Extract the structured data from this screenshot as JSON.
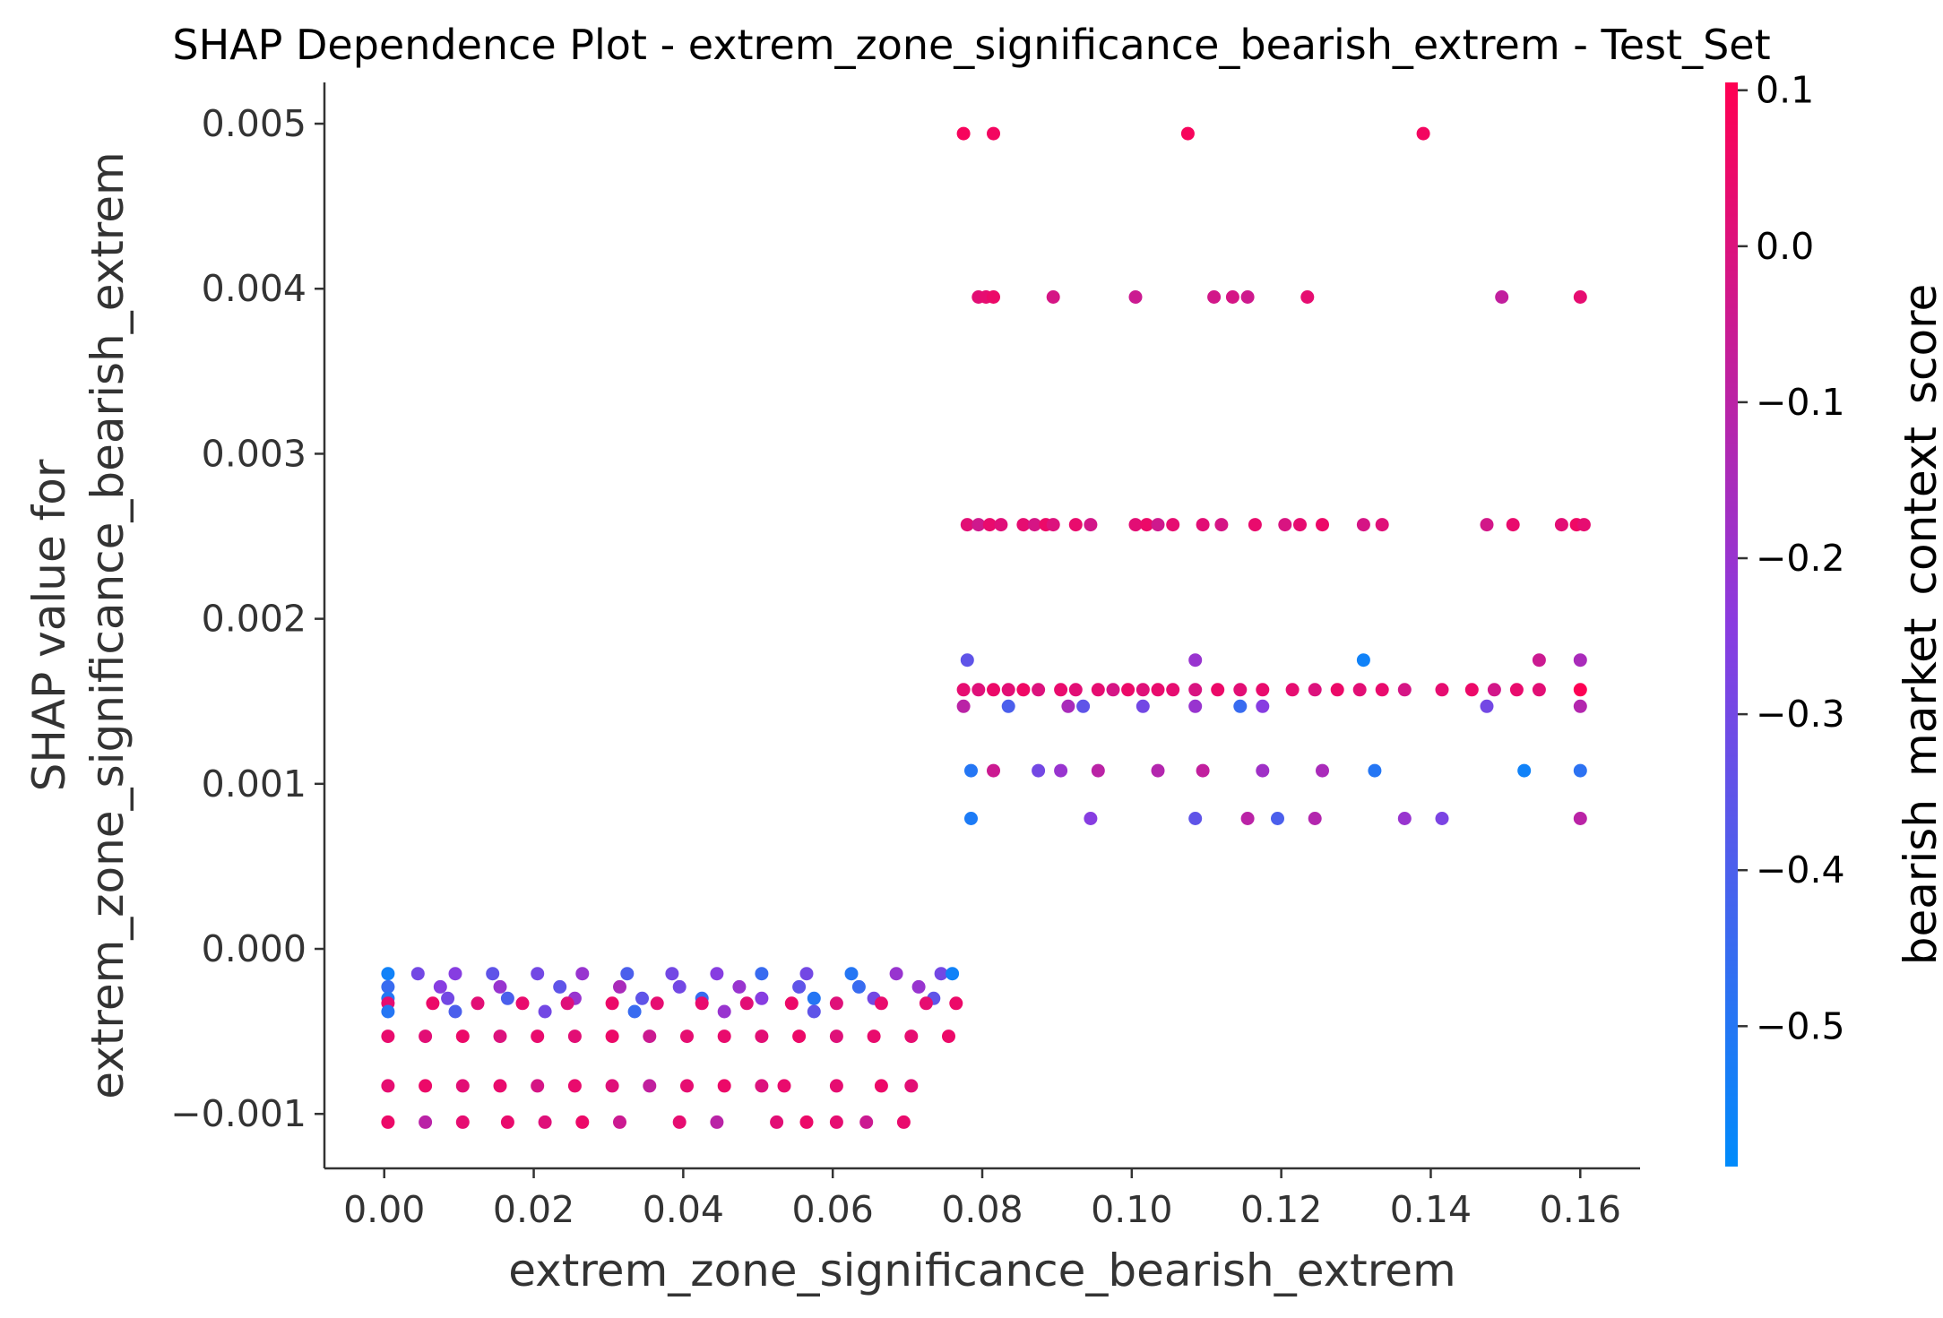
{
  "chart_data": {
    "type": "scatter",
    "title": "SHAP Dependence Plot - extrem_zone_significance_bearish_extrem - Test_Set",
    "xlabel": "extrem_zone_significance_bearish_extrem",
    "ylabel_line1": "SHAP value for",
    "ylabel_line2": "extrem_zone_significance_bearish_extrem",
    "xlim": [
      -0.008,
      0.168
    ],
    "ylim": [
      -0.00133,
      0.00525
    ],
    "xticks": [
      0.0,
      0.02,
      0.04,
      0.06,
      0.08,
      0.1,
      0.12,
      0.14,
      0.16
    ],
    "xtick_labels": [
      "0.00",
      "0.02",
      "0.04",
      "0.06",
      "0.08",
      "0.10",
      "0.12",
      "0.14",
      "0.16"
    ],
    "yticks": [
      -0.001,
      0.0,
      0.001,
      0.002,
      0.003,
      0.004,
      0.005
    ],
    "ytick_labels": [
      "−0.001",
      "0.000",
      "0.001",
      "0.002",
      "0.003",
      "0.004",
      "0.005"
    ],
    "grid": false,
    "colorbar": {
      "label": "bearish_market_context_score",
      "range": [
        -0.59,
        0.105
      ],
      "ticks": [
        0.1,
        0.0,
        -0.1,
        -0.2,
        -0.3,
        -0.4,
        -0.5
      ],
      "tick_labels": [
        "0.1",
        "0.0",
        "−0.1",
        "−0.2",
        "−0.3",
        "−0.4",
        "−0.5"
      ],
      "color_low": "#008bfb",
      "color_mid": "#8a3be0",
      "color_high": "#ff0052"
    },
    "series": [
      {
        "points": [
          [
            0.0775,
            0.00494,
            0.08
          ],
          [
            0.0815,
            0.00494,
            0.07
          ],
          [
            0.1075,
            0.00494,
            0.08
          ],
          [
            0.139,
            0.00494,
            0.07
          ],
          [
            0.0795,
            0.00395,
            0.02
          ],
          [
            0.0805,
            0.00395,
            0.03
          ],
          [
            0.0815,
            0.00395,
            0.05
          ],
          [
            0.0895,
            0.00395,
            -0.02
          ],
          [
            0.1005,
            0.00395,
            -0.05
          ],
          [
            0.111,
            0.00395,
            -0.03
          ],
          [
            0.1135,
            0.00395,
            -0.02
          ],
          [
            0.1155,
            0.00395,
            -0.04
          ],
          [
            0.1235,
            0.00395,
            0.03
          ],
          [
            0.1495,
            0.00395,
            -0.08
          ],
          [
            0.16,
            0.00395,
            0.03
          ],
          [
            0.078,
            0.00257,
            0.02
          ],
          [
            0.0795,
            0.00257,
            -0.04
          ],
          [
            0.081,
            0.00257,
            0.04
          ],
          [
            0.0825,
            0.00257,
            0.01
          ],
          [
            0.0855,
            0.00257,
            0.03
          ],
          [
            0.087,
            0.00257,
            -0.02
          ],
          [
            0.0885,
            0.00257,
            0.05
          ],
          [
            0.0895,
            0.00257,
            0.0
          ],
          [
            0.0925,
            0.00257,
            0.04
          ],
          [
            0.0945,
            0.00257,
            -0.03
          ],
          [
            0.1005,
            0.00257,
            0.02
          ],
          [
            0.102,
            0.00257,
            0.05
          ],
          [
            0.1035,
            0.00257,
            -0.04
          ],
          [
            0.1055,
            0.00257,
            0.03
          ],
          [
            0.1095,
            0.00257,
            0.02
          ],
          [
            0.112,
            0.00257,
            -0.02
          ],
          [
            0.1165,
            0.00257,
            0.04
          ],
          [
            0.1205,
            0.00257,
            -0.01
          ],
          [
            0.1225,
            0.00257,
            0.03
          ],
          [
            0.1255,
            0.00257,
            0.05
          ],
          [
            0.131,
            0.00257,
            -0.02
          ],
          [
            0.1335,
            0.00257,
            0.01
          ],
          [
            0.1475,
            0.00257,
            -0.03
          ],
          [
            0.151,
            0.00257,
            0.04
          ],
          [
            0.1575,
            0.00257,
            0.02
          ],
          [
            0.1595,
            0.00257,
            0.06
          ],
          [
            0.1605,
            0.00257,
            0.03
          ],
          [
            0.078,
            0.00175,
            -0.35
          ],
          [
            0.1085,
            0.00175,
            -0.2
          ],
          [
            0.131,
            0.00175,
            -0.55
          ],
          [
            0.1545,
            0.00175,
            -0.05
          ],
          [
            0.16,
            0.00175,
            -0.15
          ],
          [
            0.0775,
            0.00157,
            0.03
          ],
          [
            0.0795,
            0.00157,
            0.01
          ],
          [
            0.0815,
            0.00157,
            0.05
          ],
          [
            0.0835,
            0.00157,
            0.02
          ],
          [
            0.0855,
            0.00157,
            0.06
          ],
          [
            0.0875,
            0.00157,
            0.0
          ],
          [
            0.0905,
            0.00157,
            0.04
          ],
          [
            0.0925,
            0.00157,
            0.02
          ],
          [
            0.0955,
            0.00157,
            0.03
          ],
          [
            0.0975,
            0.00157,
            -0.02
          ],
          [
            0.0995,
            0.00157,
            0.05
          ],
          [
            0.1015,
            0.00157,
            0.01
          ],
          [
            0.1035,
            0.00157,
            0.04
          ],
          [
            0.1055,
            0.00157,
            0.03
          ],
          [
            0.1085,
            0.00157,
            -0.01
          ],
          [
            0.1115,
            0.00157,
            0.05
          ],
          [
            0.1145,
            0.00157,
            0.02
          ],
          [
            0.1175,
            0.00157,
            0.04
          ],
          [
            0.1215,
            0.00157,
            0.03
          ],
          [
            0.1245,
            0.00157,
            0.0
          ],
          [
            0.1275,
            0.00157,
            0.05
          ],
          [
            0.1305,
            0.00157,
            0.02
          ],
          [
            0.1335,
            0.00157,
            0.04
          ],
          [
            0.1365,
            0.00157,
            -0.02
          ],
          [
            0.1415,
            0.00157,
            0.03
          ],
          [
            0.1455,
            0.00157,
            0.05
          ],
          [
            0.1485,
            0.00157,
            -0.03
          ],
          [
            0.1515,
            0.00157,
            0.04
          ],
          [
            0.1545,
            0.00157,
            0.02
          ],
          [
            0.16,
            0.00157,
            0.1
          ],
          [
            0.0775,
            0.00147,
            -0.1
          ],
          [
            0.0835,
            0.00147,
            -0.4
          ],
          [
            0.0915,
            0.00147,
            -0.15
          ],
          [
            0.0935,
            0.00147,
            -0.35
          ],
          [
            0.1015,
            0.00147,
            -0.3
          ],
          [
            0.1085,
            0.00147,
            -0.2
          ],
          [
            0.1145,
            0.00147,
            -0.45
          ],
          [
            0.1175,
            0.00147,
            -0.25
          ],
          [
            0.1475,
            0.00147,
            -0.3
          ],
          [
            0.16,
            0.00147,
            -0.12
          ],
          [
            0.0785,
            0.00108,
            -0.5
          ],
          [
            0.0815,
            0.00108,
            -0.05
          ],
          [
            0.0875,
            0.00108,
            -0.3
          ],
          [
            0.0905,
            0.00108,
            -0.2
          ],
          [
            0.0955,
            0.00108,
            -0.1
          ],
          [
            0.1035,
            0.00108,
            -0.12
          ],
          [
            0.1095,
            0.00108,
            -0.08
          ],
          [
            0.1175,
            0.00108,
            -0.18
          ],
          [
            0.1255,
            0.00108,
            -0.15
          ],
          [
            0.1325,
            0.00108,
            -0.5
          ],
          [
            0.1525,
            0.00108,
            -0.55
          ],
          [
            0.16,
            0.00108,
            -0.48
          ],
          [
            0.0785,
            0.00079,
            -0.52
          ],
          [
            0.0945,
            0.00079,
            -0.25
          ],
          [
            0.1085,
            0.00079,
            -0.35
          ],
          [
            0.1155,
            0.00079,
            -0.1
          ],
          [
            0.1195,
            0.00079,
            -0.4
          ],
          [
            0.1245,
            0.00079,
            -0.12
          ],
          [
            0.1365,
            0.00079,
            -0.2
          ],
          [
            0.1415,
            0.00079,
            -0.28
          ],
          [
            0.16,
            0.00079,
            -0.1
          ],
          [
            0.0005,
            -0.00015,
            -0.55
          ],
          [
            0.0045,
            -0.00015,
            -0.3
          ],
          [
            0.0095,
            -0.00015,
            -0.25
          ],
          [
            0.0145,
            -0.00015,
            -0.35
          ],
          [
            0.0205,
            -0.00015,
            -0.3
          ],
          [
            0.0265,
            -0.00015,
            -0.2
          ],
          [
            0.0325,
            -0.00015,
            -0.4
          ],
          [
            0.0385,
            -0.00015,
            -0.3
          ],
          [
            0.0445,
            -0.00015,
            -0.25
          ],
          [
            0.0505,
            -0.00015,
            -0.45
          ],
          [
            0.0565,
            -0.00015,
            -0.3
          ],
          [
            0.0625,
            -0.00015,
            -0.5
          ],
          [
            0.0685,
            -0.00015,
            -0.2
          ],
          [
            0.0745,
            -0.00015,
            -0.3
          ],
          [
            0.076,
            -0.00015,
            -0.55
          ],
          [
            0.0005,
            -0.00023,
            -0.45
          ],
          [
            0.0075,
            -0.00023,
            -0.25
          ],
          [
            0.0155,
            -0.00023,
            -0.2
          ],
          [
            0.0235,
            -0.00023,
            -0.35
          ],
          [
            0.0315,
            -0.00023,
            -0.15
          ],
          [
            0.0395,
            -0.00023,
            -0.3
          ],
          [
            0.0475,
            -0.00023,
            -0.2
          ],
          [
            0.0555,
            -0.00023,
            -0.35
          ],
          [
            0.0635,
            -0.00023,
            -0.45
          ],
          [
            0.0715,
            -0.00023,
            -0.2
          ],
          [
            0.0005,
            -0.0003,
            -0.5
          ],
          [
            0.0085,
            -0.0003,
            -0.3
          ],
          [
            0.0165,
            -0.0003,
            -0.4
          ],
          [
            0.0255,
            -0.0003,
            -0.2
          ],
          [
            0.0345,
            -0.0003,
            -0.35
          ],
          [
            0.0425,
            -0.0003,
            -0.45
          ],
          [
            0.0505,
            -0.0003,
            -0.25
          ],
          [
            0.0575,
            -0.0003,
            -0.5
          ],
          [
            0.0655,
            -0.0003,
            -0.3
          ],
          [
            0.0735,
            -0.0003,
            -0.35
          ],
          [
            0.0005,
            -0.00033,
            0.03
          ],
          [
            0.0065,
            -0.00033,
            0.05
          ],
          [
            0.0125,
            -0.00033,
            0.02
          ],
          [
            0.0185,
            -0.00033,
            0.04
          ],
          [
            0.0245,
            -0.00033,
            0.01
          ],
          [
            0.0305,
            -0.00033,
            0.05
          ],
          [
            0.0365,
            -0.00033,
            0.03
          ],
          [
            0.0425,
            -0.00033,
            0.04
          ],
          [
            0.0485,
            -0.00033,
            0.02
          ],
          [
            0.0545,
            -0.00033,
            0.05
          ],
          [
            0.0605,
            -0.00033,
            0.01
          ],
          [
            0.0665,
            -0.00033,
            0.04
          ],
          [
            0.0725,
            -0.00033,
            0.03
          ],
          [
            0.0765,
            -0.00033,
            0.05
          ],
          [
            0.0005,
            -0.00038,
            -0.5
          ],
          [
            0.0095,
            -0.00038,
            -0.4
          ],
          [
            0.0215,
            -0.00038,
            -0.3
          ],
          [
            0.0335,
            -0.00038,
            -0.45
          ],
          [
            0.0455,
            -0.00038,
            -0.2
          ],
          [
            0.0575,
            -0.00038,
            -0.35
          ],
          [
            0.0005,
            -0.00053,
            0.04
          ],
          [
            0.0055,
            -0.00053,
            0.02
          ],
          [
            0.0105,
            -0.00053,
            0.05
          ],
          [
            0.0155,
            -0.00053,
            0.0
          ],
          [
            0.0205,
            -0.00053,
            0.04
          ],
          [
            0.0255,
            -0.00053,
            0.02
          ],
          [
            0.0305,
            -0.00053,
            0.05
          ],
          [
            0.0355,
            -0.00053,
            -0.05
          ],
          [
            0.0405,
            -0.00053,
            0.03
          ],
          [
            0.0455,
            -0.00053,
            0.04
          ],
          [
            0.0505,
            -0.00053,
            0.02
          ],
          [
            0.0555,
            -0.00053,
            0.05
          ],
          [
            0.0605,
            -0.00053,
            0.01
          ],
          [
            0.0655,
            -0.00053,
            0.04
          ],
          [
            0.0705,
            -0.00053,
            0.03
          ],
          [
            0.0755,
            -0.00053,
            0.05
          ],
          [
            0.0005,
            -0.00083,
            0.03
          ],
          [
            0.0055,
            -0.00083,
            0.05
          ],
          [
            0.0105,
            -0.00083,
            0.02
          ],
          [
            0.0155,
            -0.00083,
            0.04
          ],
          [
            0.0205,
            -0.00083,
            -0.02
          ],
          [
            0.0255,
            -0.00083,
            0.04
          ],
          [
            0.0305,
            -0.00083,
            0.01
          ],
          [
            0.0355,
            -0.00083,
            -0.08
          ],
          [
            0.0405,
            -0.00083,
            0.03
          ],
          [
            0.0455,
            -0.00083,
            0.05
          ],
          [
            0.0505,
            -0.00083,
            0.0
          ],
          [
            0.0535,
            -0.00083,
            0.04
          ],
          [
            0.0605,
            -0.00083,
            0.03
          ],
          [
            0.0665,
            -0.00083,
            0.05
          ],
          [
            0.0705,
            -0.00083,
            0.02
          ],
          [
            0.0005,
            -0.00105,
            0.05
          ],
          [
            0.0055,
            -0.00105,
            -0.1
          ],
          [
            0.0105,
            -0.00105,
            0.03
          ],
          [
            0.0165,
            -0.00105,
            0.04
          ],
          [
            0.0215,
            -0.00105,
            0.01
          ],
          [
            0.0265,
            -0.00105,
            0.05
          ],
          [
            0.0315,
            -0.00105,
            -0.05
          ],
          [
            0.0395,
            -0.00105,
            0.03
          ],
          [
            0.0445,
            -0.00105,
            -0.1
          ],
          [
            0.0525,
            -0.00105,
            0.02
          ],
          [
            0.0565,
            -0.00105,
            0.05
          ],
          [
            0.0605,
            -0.00105,
            0.03
          ],
          [
            0.0645,
            -0.00105,
            -0.05
          ],
          [
            0.0695,
            -0.00105,
            0.04
          ]
        ]
      }
    ]
  }
}
